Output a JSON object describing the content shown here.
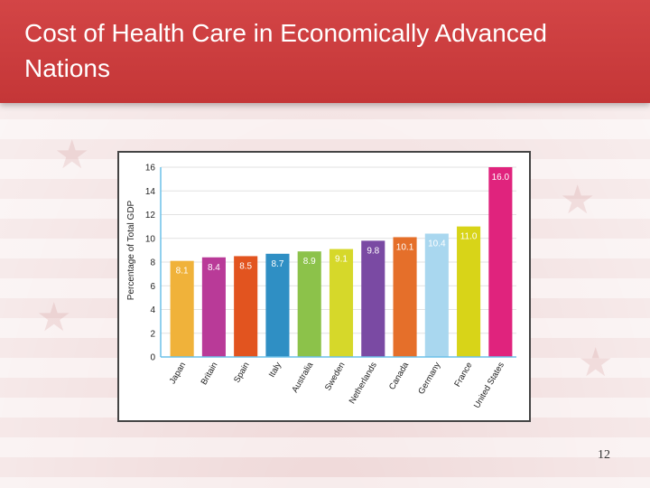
{
  "title": "Cost of Health Care in Economically Advanced Nations",
  "page_number": "12",
  "chart_data": {
    "type": "bar",
    "ylabel": "Percentage of Total GDP",
    "xlabel": "",
    "ylim": [
      0,
      16
    ],
    "yticks": [
      0,
      2,
      4,
      6,
      8,
      10,
      12,
      14,
      16
    ],
    "grid": true,
    "categories": [
      "Japan",
      "Britain",
      "Spain",
      "Italy",
      "Australia",
      "Sweden",
      "Netherlands",
      "Canada",
      "Germany",
      "France",
      "United States"
    ],
    "values": [
      8.1,
      8.4,
      8.5,
      8.7,
      8.9,
      9.1,
      9.8,
      10.1,
      10.4,
      11.0,
      16.0
    ],
    "value_labels": [
      "8.1",
      "8.4",
      "8.5",
      "8.7",
      "8.9",
      "9.1",
      "9.8",
      "10.1",
      "10.4",
      "11.0",
      "16.0"
    ],
    "colors": [
      "#f0b23a",
      "#b93a98",
      "#e2541f",
      "#2f8fc4",
      "#8cc24a",
      "#d6d82a",
      "#7a4aa3",
      "#e56f2a",
      "#a9d7ef",
      "#d8d418",
      "#e0237d"
    ]
  }
}
